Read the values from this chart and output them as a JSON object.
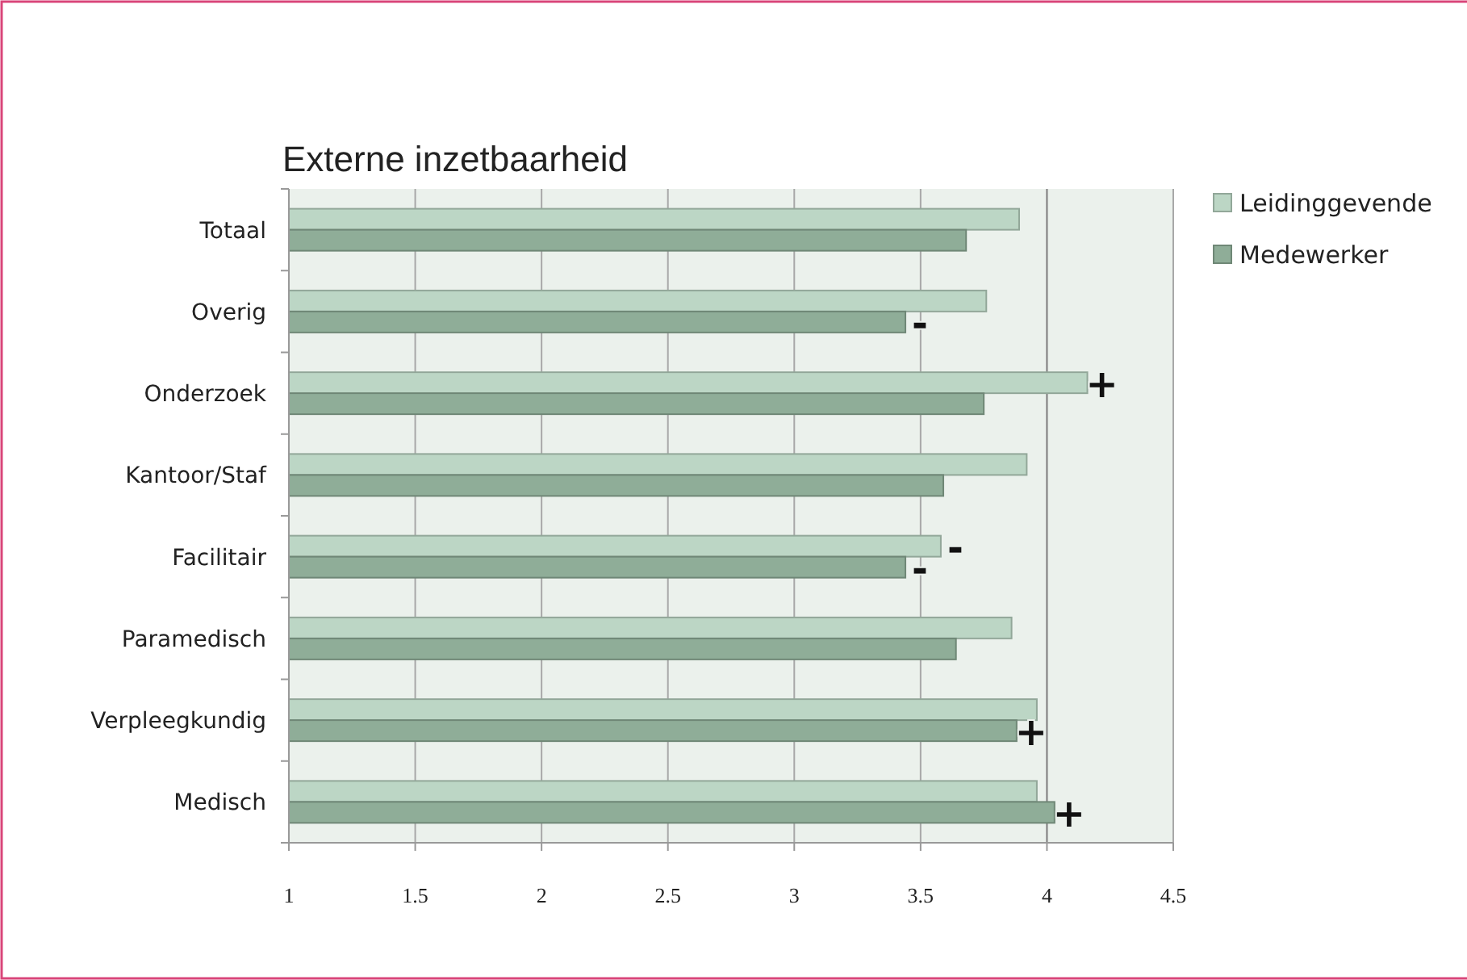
{
  "chart_data": {
    "type": "bar",
    "orientation": "horizontal",
    "title": "Externe inzetbaarheid",
    "categories": [
      "Totaal",
      "Overig",
      "Onderzoek",
      "Kantoor/Staf",
      "Facilitair",
      "Paramedisch",
      "Verpleegkundig",
      "Medisch"
    ],
    "series": [
      {
        "name": "Leidinggevende",
        "color": "#bcd6c5",
        "values": [
          3.89,
          3.76,
          4.16,
          3.92,
          3.58,
          3.86,
          3.96,
          3.96
        ]
      },
      {
        "name": "Medewerker",
        "color": "#8fad98",
        "values": [
          3.68,
          3.44,
          3.75,
          3.59,
          3.44,
          3.64,
          3.88,
          4.03
        ]
      }
    ],
    "xlim": [
      1,
      4.5
    ],
    "xticks": [
      1,
      1.5,
      2,
      2.5,
      3,
      3.5,
      4,
      4.5
    ],
    "grid": "x",
    "legend": "top right",
    "ref_lines": [
      {
        "axis": "x",
        "value": 4,
        "color": "#8a8a8a"
      }
    ],
    "annotations": [
      {
        "text": "-",
        "x": 3.44,
        "y": "Overig"
      },
      {
        "text": "+",
        "x": 4.16,
        "y": "Onderzoek"
      },
      {
        "text": "-",
        "x": 3.58,
        "y": "Facilitair"
      },
      {
        "text": "-",
        "x": 3.44,
        "y": "Facilitair"
      },
      {
        "text": "+",
        "x": 3.88,
        "y": "Verpleegkundig"
      },
      {
        "text": "+",
        "x": 4.03,
        "y": "Medisch"
      }
    ]
  }
}
